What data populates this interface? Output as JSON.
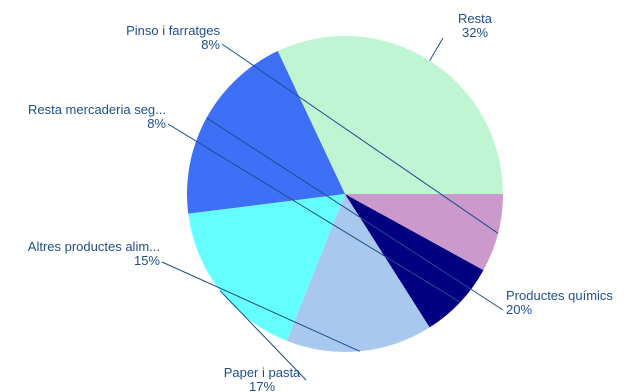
{
  "chart_data": {
    "type": "pie",
    "slices": [
      {
        "label": "Resta",
        "value": 32,
        "pct_label": "32%",
        "color": "#bff5d2"
      },
      {
        "label": "Productes químics",
        "value": 20,
        "pct_label": "20%",
        "color": "#3d6ff7"
      },
      {
        "label": "Paper i pasta",
        "value": 17,
        "pct_label": "17%",
        "color": "#66ffff"
      },
      {
        "label": "Altres productes alim...",
        "value": 15,
        "pct_label": "15%",
        "color": "#a8c8f0"
      },
      {
        "label": "Resta mercaderia seg...",
        "value": 8,
        "pct_label": "8%",
        "color": "#000080"
      },
      {
        "label": "Pinso i farratges",
        "value": 8,
        "pct_label": "8%",
        "color": "#cc99cc"
      }
    ],
    "label_color": "#1f4e8c"
  }
}
